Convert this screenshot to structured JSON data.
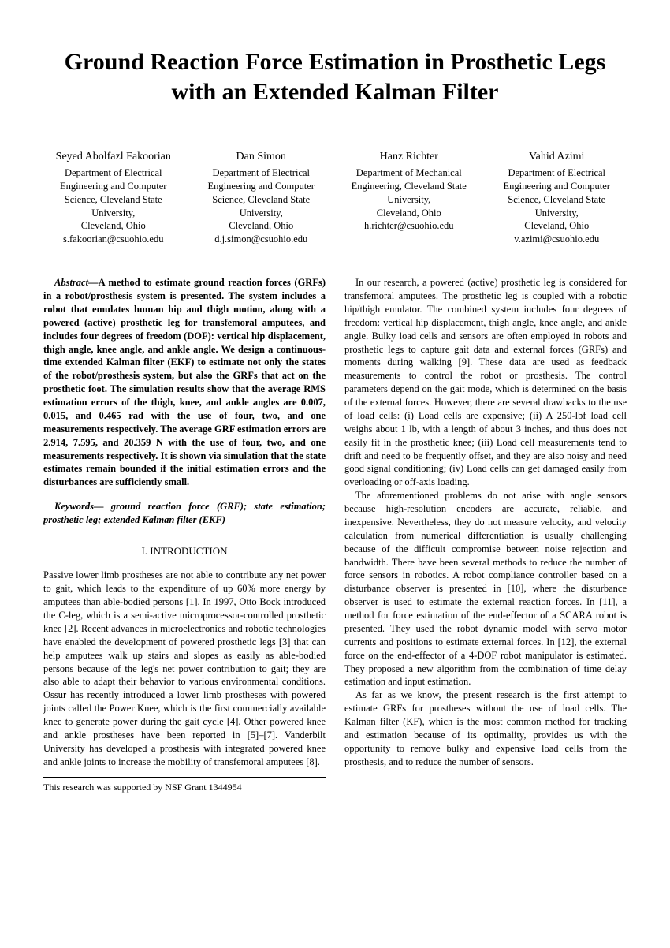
{
  "title": "Ground Reaction Force Estimation in Prosthetic Legs with an Extended Kalman Filter",
  "authors": [
    {
      "name": "Seyed Abolfazl Fakoorian",
      "dept": "Department of Electrical Engineering and Computer Science, Cleveland State University,",
      "city": "Cleveland, Ohio",
      "email": "s.fakoorian@csuohio.edu"
    },
    {
      "name": "Dan Simon",
      "dept": "Department of Electrical Engineering and Computer Science, Cleveland State University,",
      "city": "Cleveland, Ohio",
      "email": "d.j.simon@csuohio.edu"
    },
    {
      "name": "Hanz Richter",
      "dept": "Department of Mechanical Engineering, Cleveland State University,",
      "city": "Cleveland, Ohio",
      "email": "h.richter@csuohio.edu"
    },
    {
      "name": "Vahid Azimi",
      "dept": "Department of Electrical Engineering and Computer Science, Cleveland State University,",
      "city": "Cleveland, Ohio",
      "email": "v.azimi@csuohio.edu"
    }
  ],
  "abstract_label": "Abstract—",
  "abstract": "A method to estimate ground reaction forces (GRFs) in a robot/prosthesis system is presented. The system includes a robot that emulates human hip and thigh motion, along with a powered (active) prosthetic leg for transfemoral amputees, and includes four degrees of freedom (DOF): vertical hip displacement, thigh angle, knee angle, and ankle angle. We design a continuous-time extended Kalman filter (EKF) to estimate not only the states of the robot/prosthesis system, but also the GRFs that act on the prosthetic foot. The simulation results show that the average RMS estimation errors of the thigh, knee, and ankle angles are 0.007, 0.015, and 0.465 rad with the use of four, two, and one measurements respectively. The average GRF estimation errors are 2.914, 7.595, and 20.359 N with the use of four, two, and one measurements respectively. It is shown via simulation that the state estimates remain bounded if the initial estimation errors and the disturbances are sufficiently small.",
  "keywords_label": "Keywords—",
  "keywords": " ground reaction force (GRF); state estimation; prosthetic leg; extended Kalman filter (EKF)",
  "section1": "I. INTRODUCTION",
  "intro_p1": "Passive lower limb prostheses are not able to contribute any net power to gait, which leads to the expenditure of up 60% more energy by amputees than able-bodied persons [1]. In 1997, Otto Bock introduced the C-leg, which is a semi-active microprocessor-controlled prosthetic knee [2]. Recent advances in microelectronics and robotic technologies have enabled the development of powered prosthetic legs [3] that can help amputees walk up stairs and slopes as easily as able-bodied persons because of the leg's net power contribution to gait; they are also able to adapt their behavior to various environmental conditions. Ossur has recently introduced a lower limb prostheses with powered joints called the Power Knee, which is the first commercially available knee to generate power during the gait cycle [4]. Other powered knee and ankle prostheses have been reported in [5]–[7]. Vanderbilt University has developed a prosthesis with integrated powered knee and ankle joints to increase the mobility of transfemoral amputees [8].",
  "footnote": "This research was supported by NSF Grant 1344954",
  "col2_p1": "In our research, a powered (active) prosthetic leg is considered for transfemoral amputees. The prosthetic leg is coupled with a robotic hip/thigh emulator. The combined system includes four degrees of freedom: vertical hip displacement, thigh angle, knee angle, and ankle angle. Bulky load cells and sensors are often employed in robots and prosthetic legs to capture gait data and external forces (GRFs) and moments during walking [9]. These data are used as feedback measurements to control the robot or prosthesis. The control parameters depend on the gait mode, which is determined on the basis of the external forces. However, there are several drawbacks to the use of load cells: (i) Load cells are expensive; (ii) A 250-lbf load cell weighs about 1 lb, with a length of about 3 inches, and thus does not easily fit in the prosthetic knee; (iii) Load cell measurements tend to drift and need to be frequently offset, and they are also noisy and need good signal conditioning; (iv) Load cells can get damaged easily from overloading or off-axis loading.",
  "col2_p2": "The aforementioned problems do not arise with angle sensors because high-resolution encoders are accurate, reliable, and inexpensive. Nevertheless, they do not measure velocity, and velocity calculation from numerical differentiation is usually challenging because of the difficult compromise between noise rejection and bandwidth. There have been several methods to reduce the number of force sensors in robotics. A robot compliance controller based on a disturbance observer is presented in [10], where the disturbance observer is used to estimate the external reaction forces. In [11], a method for force estimation of the end-effector of a SCARA robot is presented. They used the robot dynamic model with servo motor currents and positions to estimate external forces. In [12], the external force on the end-effector of a 4-DOF robot manipulator is estimated. They proposed a new algorithm from the combination of time delay estimation and input estimation.",
  "col2_p3": "As far as we know, the present research is the first attempt to estimate GRFs for prostheses without the use of load cells. The Kalman filter (KF), which is the most common method for tracking and estimation because of its optimality, provides us with the opportunity to remove bulky and expensive load cells from the prosthesis, and to reduce the number of sensors."
}
